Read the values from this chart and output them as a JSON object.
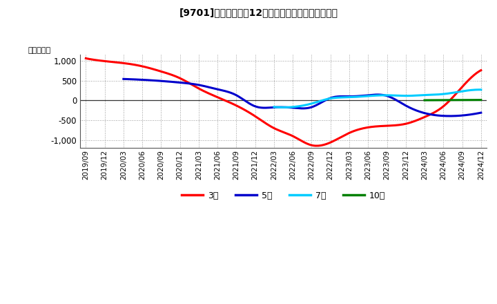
{
  "title": "[9701]　当期純利益12か月移動合計の平均値の推移",
  "ylabel": "（百万円）",
  "background_color": "#ffffff",
  "plot_bg_color": "#ffffff",
  "grid_color": "#999999",
  "ylim": [
    -1200,
    1150
  ],
  "yticks": [
    -1000,
    -500,
    0,
    500,
    1000
  ],
  "series": {
    "3年": {
      "color": "#ff0000",
      "dates": [
        "2019/09",
        "2019/12",
        "2020/03",
        "2020/06",
        "2020/09",
        "2020/12",
        "2021/03",
        "2021/06",
        "2021/09",
        "2021/12",
        "2022/03",
        "2022/06",
        "2022/09",
        "2022/12",
        "2023/03",
        "2023/06",
        "2023/09",
        "2023/12",
        "2024/03",
        "2024/06",
        "2024/09",
        "2024/12"
      ],
      "values": [
        1060,
        990,
        940,
        860,
        730,
        560,
        300,
        80,
        -130,
        -400,
        -700,
        -900,
        -1130,
        -1060,
        -820,
        -680,
        -640,
        -590,
        -420,
        -150,
        340,
        760
      ]
    },
    "5年": {
      "color": "#0000cc",
      "dates": [
        "2020/03",
        "2020/06",
        "2020/09",
        "2020/12",
        "2021/03",
        "2021/06",
        "2021/09",
        "2021/12",
        "2022/03",
        "2022/06",
        "2022/09",
        "2022/12",
        "2023/03",
        "2023/06",
        "2023/09",
        "2023/12",
        "2024/03",
        "2024/06",
        "2024/09",
        "2024/12"
      ],
      "values": [
        540,
        520,
        490,
        450,
        390,
        280,
        130,
        -150,
        -175,
        -185,
        -170,
        60,
        100,
        130,
        115,
        -130,
        -320,
        -390,
        -380,
        -310
      ]
    },
    "7年": {
      "color": "#00ccff",
      "dates": [
        "2022/03",
        "2022/06",
        "2022/09",
        "2022/12",
        "2023/03",
        "2023/06",
        "2023/09",
        "2023/12",
        "2024/03",
        "2024/06",
        "2024/09",
        "2024/12"
      ],
      "values": [
        -165,
        -165,
        -80,
        50,
        80,
        110,
        130,
        115,
        135,
        160,
        230,
        270
      ]
    },
    "10年": {
      "color": "#008000",
      "dates": [
        "2024/03",
        "2024/06",
        "2024/09",
        "2024/12"
      ],
      "values": [
        5,
        8,
        10,
        12
      ]
    }
  },
  "xtick_labels": [
    "2019/09",
    "2019/12",
    "2020/03",
    "2020/06",
    "2020/09",
    "2020/12",
    "2021/03",
    "2021/06",
    "2021/09",
    "2021/12",
    "2022/03",
    "2022/06",
    "2022/09",
    "2022/12",
    "2023/03",
    "2023/06",
    "2023/09",
    "2023/12",
    "2024/03",
    "2024/06",
    "2024/09",
    "2024/12"
  ],
  "legend_entries": [
    "3年",
    "5年",
    "7年",
    "10年"
  ],
  "legend_colors": [
    "#ff0000",
    "#0000cc",
    "#00ccff",
    "#008000"
  ]
}
